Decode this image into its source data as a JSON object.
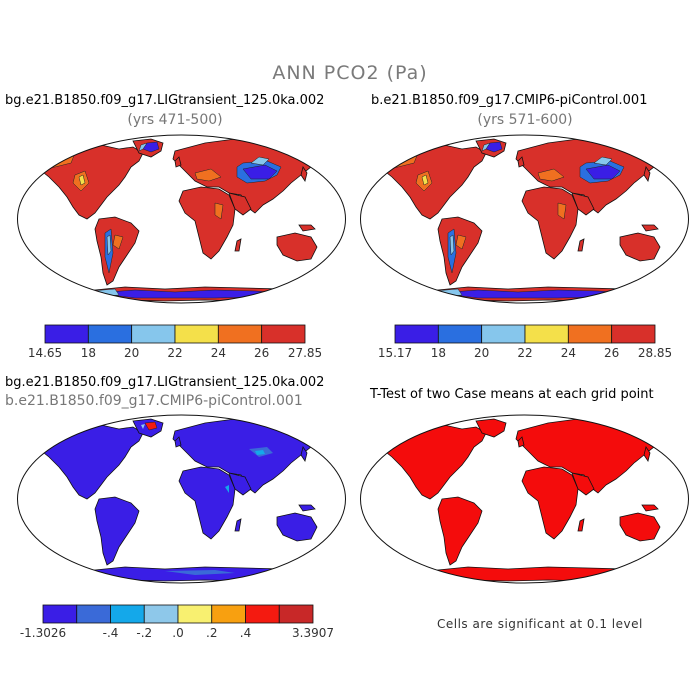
{
  "main_title": "ANN PCO2 (Pa)",
  "panels": [
    {
      "id": "lig",
      "title": "bg.e21.B1850.f09_g17.LIGtransient_125.0ka.002",
      "subtitle": "(yrs 471-500)",
      "colorbar": {
        "colors": [
          "#3a1ee6",
          "#2a6fe0",
          "#86c6ec",
          "#f4e04a",
          "#f07020",
          "#d8302a"
        ],
        "labels": [
          "14.65",
          "18",
          "20",
          "22",
          "24",
          "26",
          "27.85"
        ]
      },
      "palette": {
        "land": "#d8302a",
        "dark": "#3a1ee6",
        "mid": "#2a6fe0",
        "light": "#86c6ec",
        "yellow": "#f4e04a",
        "orange": "#f07020"
      }
    },
    {
      "id": "ctrl",
      "title": "b.e21.B1850.f09_g17.CMIP6-piControl.001",
      "subtitle": "(yrs 571-600)",
      "colorbar": {
        "colors": [
          "#3a1ee6",
          "#2a6fe0",
          "#86c6ec",
          "#f4e04a",
          "#f07020",
          "#d8302a"
        ],
        "labels": [
          "15.17",
          "18",
          "20",
          "22",
          "24",
          "26",
          "28.85"
        ]
      },
      "palette": {
        "land": "#d8302a",
        "dark": "#3a1ee6",
        "mid": "#2a6fe0",
        "light": "#86c6ec",
        "yellow": "#f4e04a",
        "orange": "#f07020"
      }
    },
    {
      "id": "diff",
      "title": "bg.e21.B1850.f09_g17.LIGtransient_125.0ka.002",
      "subtitle": "b.e21.B1850.f09_g17.CMIP6-piControl.001",
      "colorbar": {
        "colors": [
          "#3a1ee6",
          "#3a6ad8",
          "#14a8ea",
          "#8ec8ea",
          "#f8f070",
          "#f8a010",
          "#f41a10",
          "#c82828"
        ],
        "labels": [
          "-1.3026",
          "-.4",
          "-.2",
          ".0",
          ".2",
          ".4",
          "3.3907"
        ]
      },
      "palette": {
        "land": "#3a1ee6"
      }
    },
    {
      "id": "ttest",
      "title": "T-Test of two Case means at each grid point",
      "note": "Cells are significant at 0.1 level",
      "palette": {
        "land": "#f40c0c"
      }
    }
  ]
}
